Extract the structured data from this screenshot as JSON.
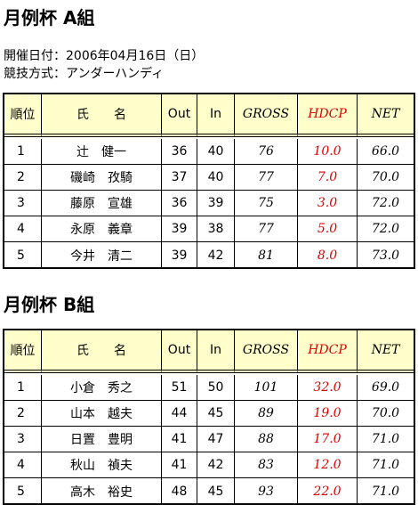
{
  "info": {
    "date": "開催日付：2006年04月16日（日）",
    "format": "競技方式：アンダーハンディ"
  },
  "groups": [
    {
      "title": "月例杯 A組",
      "table": {
        "header": [
          "順位",
          "氏　　名",
          "Out",
          "In",
          "GROSS",
          "HDCP",
          "NET"
        ],
        "rows": [
          [
            "1",
            "辻　健一",
            "36",
            "40",
            "76",
            "10.0",
            "66.0"
          ],
          [
            "2",
            "磯崎　孜騎",
            "37",
            "40",
            "77",
            "7.0",
            "70.0"
          ],
          [
            "3",
            "藤原　宣雄",
            "36",
            "39",
            "75",
            "3.0",
            "72.0"
          ],
          [
            "4",
            "永原　義章",
            "39",
            "38",
            "77",
            "5.0",
            "72.0"
          ],
          [
            "5",
            "今井　清二",
            "39",
            "42",
            "81",
            "8.0",
            "73.0"
          ]
        ]
      }
    },
    {
      "title": "月例杯 B組",
      "table": {
        "header": [
          "順位",
          "氏　　名",
          "Out",
          "In",
          "GROSS",
          "HDCP",
          "NET"
        ],
        "rows": [
          [
            "1",
            "小倉　秀之",
            "51",
            "50",
            "101",
            "32.0",
            "69.0"
          ],
          [
            "2",
            "山本　越夫",
            "44",
            "45",
            "89",
            "19.0",
            "70.0"
          ],
          [
            "3",
            "日置　豊明",
            "41",
            "47",
            "88",
            "17.0",
            "71.0"
          ],
          [
            "4",
            "秋山　禎夫",
            "41",
            "42",
            "83",
            "12.0",
            "71.0"
          ],
          [
            "5",
            "高木　裕史",
            "48",
            "45",
            "93",
            "22.0",
            "71.0"
          ]
        ]
      }
    }
  ]
}
